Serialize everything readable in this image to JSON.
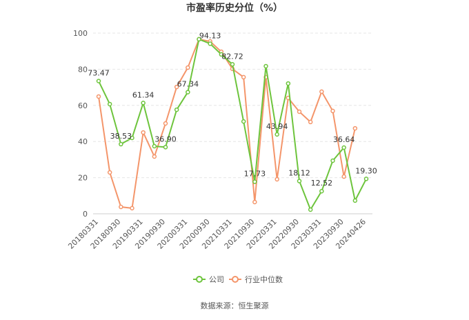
{
  "chart_data": {
    "type": "line",
    "title": "市盈率历史分位（%）",
    "source": "数据来源：恒生聚源",
    "categories": [
      "20180331",
      null,
      "20180930",
      null,
      "20190331",
      null,
      "20190930",
      null,
      "20200331",
      null,
      "20200930",
      null,
      "20210331",
      null,
      "20210930",
      null,
      "20220331",
      null,
      "20220930",
      null,
      "20230331",
      null,
      "20230930",
      null,
      "20240426"
    ],
    "series": [
      {
        "name": "公司",
        "color": "#6dc43c",
        "values": [
          73.47,
          60.7,
          38.53,
          42.0,
          61.34,
          37.4,
          36.9,
          57.6,
          67.34,
          96.6,
          94.13,
          88.2,
          82.72,
          51.1,
          17.73,
          81.7,
          43.94,
          72.1,
          18.12,
          2.3,
          12.52,
          29.4,
          36.64,
          7.3,
          19.3
        ],
        "value_labels": [
          "73.47",
          null,
          "38.53",
          null,
          "61.34",
          null,
          "36.90",
          null,
          "67.34",
          null,
          "94.13",
          null,
          "82.72",
          null,
          "17.73",
          null,
          "43.94",
          null,
          "18.12",
          null,
          "12.52",
          null,
          "36.64",
          null,
          "19.30"
        ]
      },
      {
        "name": "行业中位数",
        "color": "#f4956a",
        "values": [
          64.9,
          22.9,
          3.8,
          3.1,
          45.0,
          31.7,
          50.0,
          70.2,
          80.9,
          96.6,
          95.4,
          89.7,
          80.2,
          75.6,
          6.5,
          75.6,
          19.1,
          64.1,
          56.5,
          50.8,
          67.6,
          56.9,
          20.6,
          47.3,
          null
        ]
      }
    ],
    "ylim": [
      0,
      100
    ],
    "yticks": [
      0,
      20,
      40,
      60,
      80,
      100
    ],
    "grid": true,
    "legend": "bottom"
  }
}
